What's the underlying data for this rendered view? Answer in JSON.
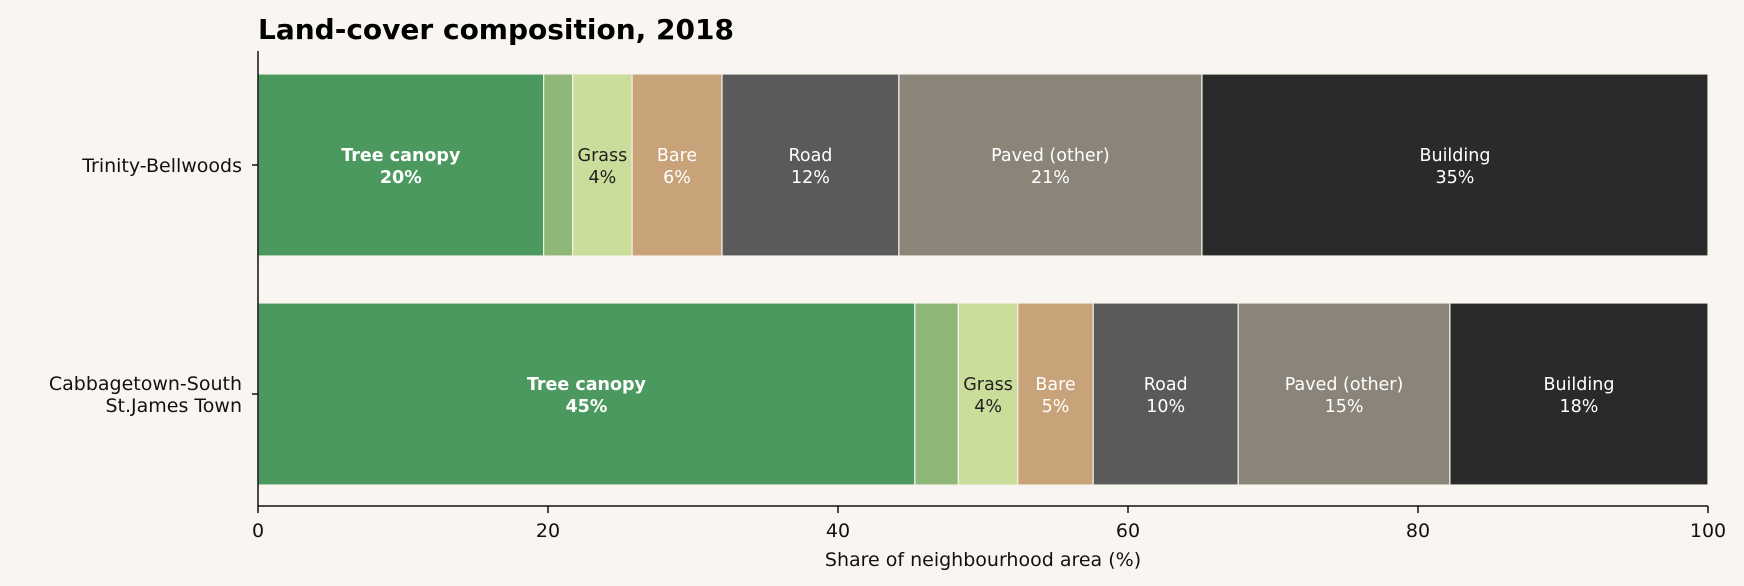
{
  "chart_data": {
    "type": "bar",
    "orientation": "horizontal",
    "stacked": true,
    "title": "Land-cover composition, 2018",
    "xlabel": "Share of neighbourhood area (%)",
    "ylabel": "",
    "xlim": [
      0,
      100
    ],
    "xticks": [
      "0",
      "20",
      "40",
      "60",
      "80",
      "100"
    ],
    "grid": false,
    "legend": "none",
    "categories": [
      "Trinity-Bellwoods",
      "Cabbagetown-South\nSt.James Town"
    ],
    "category_lines": [
      [
        "Trinity-Bellwoods"
      ],
      [
        "Cabbagetown-South",
        "St.James Town"
      ]
    ],
    "series": [
      {
        "name": "Tree canopy",
        "color": "#4c9960",
        "text_color": "#ffffff",
        "bold": true,
        "values": [
          19.7,
          45.3
        ],
        "labels": [
          "20%",
          "45%"
        ]
      },
      {
        "color": "#8fb878",
        "text_color": "#ffffff",
        "values": [
          2.0,
          3.0
        ],
        "labels": [
          "",
          ""
        ]
      },
      {
        "name": "Grass",
        "color": "#cbdd9b",
        "text_color": "#222222",
        "values": [
          4.1,
          4.1
        ],
        "labels": [
          "4%",
          "4%"
        ]
      },
      {
        "name": "Bare",
        "color": "#c8a278",
        "text_color": "#ffffff",
        "values": [
          6.2,
          5.2
        ],
        "labels": [
          "6%",
          "5%"
        ]
      },
      {
        "name": "Road",
        "color": "#5a5a5a",
        "text_color": "#ffffff",
        "values": [
          12.2,
          10.0
        ],
        "labels": [
          "12%",
          "10%"
        ]
      },
      {
        "name": "Paved (other)",
        "color": "#8b8478",
        "text_color": "#ffffff",
        "values": [
          20.9,
          14.6
        ],
        "labels": [
          "21%",
          "15%"
        ]
      },
      {
        "name": "Building",
        "color": "#2a2a2a",
        "text_color": "#ffffff",
        "values": [
          34.9,
          17.8
        ],
        "labels": [
          "35%",
          "18%"
        ]
      }
    ]
  }
}
